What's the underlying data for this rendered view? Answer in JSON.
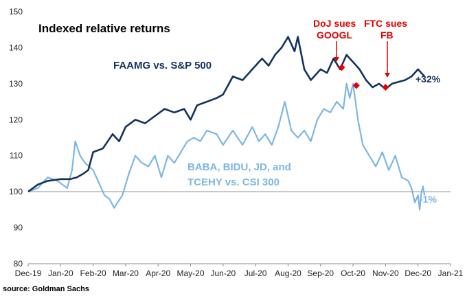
{
  "chart_data": {
    "type": "line",
    "title": "Indexed relative returns",
    "source": "source: Goldman Sachs",
    "ylim": [
      80,
      150
    ],
    "y_ticks": [
      "80",
      "90",
      "100",
      "110",
      "120",
      "130",
      "140",
      "150"
    ],
    "x_ticks": [
      "Dec-19",
      "Jan-20",
      "Feb-20",
      "Mar-20",
      "Apr-20",
      "May-20",
      "Jun-20",
      "Jul-20",
      "Aug-20",
      "Sep-20",
      "Oct-20",
      "Nov-20",
      "Dec-20",
      "Jan-21"
    ],
    "reference_line": 100,
    "series": [
      {
        "name": "FAAMG vs. S&P 500",
        "color": "#12325e",
        "end_label": "+32%",
        "points": [
          [
            0,
            100
          ],
          [
            0.3,
            102
          ],
          [
            0.6,
            103
          ],
          [
            1.0,
            103.5
          ],
          [
            1.3,
            103.5
          ],
          [
            1.5,
            104
          ],
          [
            1.7,
            105
          ],
          [
            1.85,
            106
          ],
          [
            2.0,
            111
          ],
          [
            2.3,
            112
          ],
          [
            2.6,
            116
          ],
          [
            2.8,
            114
          ],
          [
            3.0,
            118
          ],
          [
            3.3,
            120
          ],
          [
            3.6,
            119
          ],
          [
            3.9,
            121
          ],
          [
            4.2,
            123
          ],
          [
            4.5,
            122
          ],
          [
            4.8,
            123
          ],
          [
            5.0,
            120
          ],
          [
            5.2,
            124
          ],
          [
            5.5,
            125
          ],
          [
            5.8,
            126
          ],
          [
            6.0,
            127
          ],
          [
            6.3,
            132
          ],
          [
            6.6,
            131
          ],
          [
            6.9,
            134
          ],
          [
            7.2,
            137
          ],
          [
            7.4,
            135
          ],
          [
            7.6,
            138
          ],
          [
            7.8,
            140
          ],
          [
            8.0,
            143
          ],
          [
            8.2,
            139
          ],
          [
            8.3,
            143
          ],
          [
            8.5,
            134
          ],
          [
            8.7,
            131
          ],
          [
            9.0,
            134
          ],
          [
            9.2,
            133
          ],
          [
            9.4,
            137
          ],
          [
            9.6,
            134
          ],
          [
            9.8,
            138
          ],
          [
            10.0,
            136
          ],
          [
            10.2,
            134
          ],
          [
            10.4,
            131
          ],
          [
            10.6,
            129
          ],
          [
            10.8,
            130
          ],
          [
            11.0,
            128.5
          ],
          [
            11.2,
            130
          ],
          [
            11.4,
            130.5
          ],
          [
            11.6,
            131
          ],
          [
            11.8,
            132
          ],
          [
            12.0,
            134
          ],
          [
            12.1,
            133
          ],
          [
            12.2,
            132
          ]
        ]
      },
      {
        "name": "BABA, BIDU, JD, and TCEHY vs. CSI 300",
        "color": "#7db6e2",
        "end_label": "-1%",
        "points": [
          [
            0,
            100
          ],
          [
            0.3,
            101
          ],
          [
            0.6,
            104
          ],
          [
            0.9,
            103
          ],
          [
            1.2,
            101
          ],
          [
            1.35,
            106
          ],
          [
            1.45,
            114
          ],
          [
            1.6,
            110
          ],
          [
            1.75,
            108
          ],
          [
            2.0,
            106
          ],
          [
            2.2,
            102
          ],
          [
            2.35,
            99
          ],
          [
            2.5,
            98
          ],
          [
            2.65,
            95.5
          ],
          [
            2.75,
            97
          ],
          [
            2.9,
            99
          ],
          [
            3.1,
            105
          ],
          [
            3.3,
            110
          ],
          [
            3.5,
            108
          ],
          [
            3.7,
            107
          ],
          [
            3.9,
            110
          ],
          [
            4.1,
            104
          ],
          [
            4.3,
            110
          ],
          [
            4.5,
            108
          ],
          [
            4.7,
            111
          ],
          [
            4.9,
            114
          ],
          [
            5.1,
            115
          ],
          [
            5.3,
            114
          ],
          [
            5.5,
            117
          ],
          [
            5.8,
            116
          ],
          [
            6.0,
            113
          ],
          [
            6.3,
            117
          ],
          [
            6.6,
            113
          ],
          [
            6.9,
            118
          ],
          [
            7.1,
            114
          ],
          [
            7.3,
            116
          ],
          [
            7.5,
            113
          ],
          [
            7.7,
            118
          ],
          [
            7.9,
            125
          ],
          [
            8.1,
            117
          ],
          [
            8.3,
            115
          ],
          [
            8.5,
            117
          ],
          [
            8.7,
            114
          ],
          [
            8.9,
            120
          ],
          [
            9.1,
            123
          ],
          [
            9.3,
            122
          ],
          [
            9.5,
            125
          ],
          [
            9.7,
            123
          ],
          [
            9.8,
            130
          ],
          [
            9.9,
            126
          ],
          [
            10.0,
            130
          ],
          [
            10.15,
            120
          ],
          [
            10.3,
            113
          ],
          [
            10.5,
            110
          ],
          [
            10.7,
            107
          ],
          [
            10.9,
            111
          ],
          [
            11.1,
            106
          ],
          [
            11.3,
            110
          ],
          [
            11.5,
            104
          ],
          [
            11.7,
            103
          ],
          [
            11.8,
            101
          ],
          [
            11.9,
            97
          ],
          [
            12.0,
            99
          ],
          [
            12.05,
            95
          ],
          [
            12.1,
            99.5
          ],
          [
            12.15,
            101.5
          ],
          [
            12.2,
            99
          ]
        ]
      }
    ],
    "annotations": [
      {
        "label_lines": [
          "DoJ sues",
          "GOOGL"
        ],
        "x": 9.65,
        "y": 134.5
      },
      {
        "label_lines": [
          "FTC sues",
          "FB"
        ],
        "x": 11.0,
        "y": 129
      },
      {
        "x": 10.1,
        "y": 129.5
      }
    ]
  }
}
